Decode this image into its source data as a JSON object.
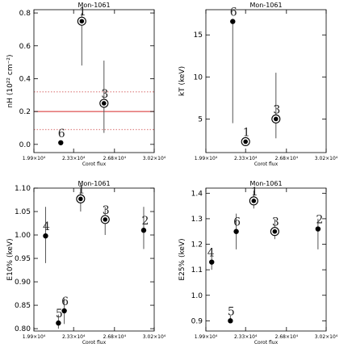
{
  "colors": {
    "ref_line": "#d62728",
    "ref_band": "#e08a8a",
    "ink": "#000000"
  },
  "chart_data": [
    {
      "type": "scatter",
      "title": "Mon-1061",
      "xlabel": "Corot flux",
      "ylabel": "nH (10²² cm⁻²)",
      "xlim": [
        19900,
        30200
      ],
      "ylim": [
        -0.05,
        0.82
      ],
      "xticks": [
        {
          "v": 19900,
          "label": "1.99×10⁴"
        },
        {
          "v": 23300,
          "label": "2.33×10⁴"
        },
        {
          "v": 26800,
          "label": "2.68×10⁴"
        },
        {
          "v": 30200,
          "label": "3.02×10⁴"
        }
      ],
      "yticks": [
        {
          "v": 0.0,
          "label": "0.0"
        },
        {
          "v": 0.2,
          "label": "0.2"
        },
        {
          "v": 0.4,
          "label": "0.4"
        },
        {
          "v": 0.6,
          "label": "0.6"
        },
        {
          "v": 0.8,
          "label": "0.8"
        }
      ],
      "reference": {
        "value": 0.2,
        "band": [
          0.09,
          0.32
        ]
      },
      "points": [
        {
          "label": "1",
          "x": 24000,
          "y": 0.75,
          "err": [
            0.48,
            0.8
          ],
          "style": "ring"
        },
        {
          "label": "3",
          "x": 25900,
          "y": 0.25,
          "err": [
            0.07,
            0.51
          ],
          "style": "ring"
        },
        {
          "label": "6",
          "x": 22200,
          "y": 0.01,
          "err": null,
          "style": "dot"
        }
      ]
    },
    {
      "type": "scatter",
      "title": "Mon-1061",
      "xlabel": "Corot flux",
      "ylabel": "kT (keV)",
      "xlim": [
        19900,
        30200
      ],
      "ylim": [
        1.0,
        18.0
      ],
      "xticks": [
        {
          "v": 19900,
          "label": "1.99×10⁴"
        },
        {
          "v": 23300,
          "label": "2.33×10⁴"
        },
        {
          "v": 26800,
          "label": "2.68×10⁴"
        },
        {
          "v": 30200,
          "label": "3.02×10⁴"
        }
      ],
      "yticks": [
        {
          "v": 5,
          "label": "5"
        },
        {
          "v": 10,
          "label": "10"
        },
        {
          "v": 15,
          "label": "15"
        }
      ],
      "reference": null,
      "points": [
        {
          "label": "6",
          "x": 22200,
          "y": 16.6,
          "err": [
            4.5,
            16.6
          ],
          "style": "dot"
        },
        {
          "label": "1",
          "x": 23300,
          "y": 2.3,
          "err": null,
          "style": "ring"
        },
        {
          "label": "3",
          "x": 25900,
          "y": 5.0,
          "err": [
            2.7,
            10.5
          ],
          "style": "ring"
        }
      ]
    },
    {
      "type": "scatter",
      "title": "Mon-1061",
      "xlabel": "Corot flux",
      "ylabel": "E10% (keV)",
      "xlim": [
        19900,
        30200
      ],
      "ylim": [
        0.795,
        1.1
      ],
      "xticks": [
        {
          "v": 19900,
          "label": "1.99×10⁴"
        },
        {
          "v": 23300,
          "label": "2.33×10⁴"
        },
        {
          "v": 26800,
          "label": "2.68×10⁴"
        },
        {
          "v": 30200,
          "label": "3.02×10⁴"
        }
      ],
      "yticks": [
        {
          "v": 0.8,
          "label": "0.80"
        },
        {
          "v": 0.85,
          "label": "0.85"
        },
        {
          "v": 0.9,
          "label": "0.90"
        },
        {
          "v": 0.95,
          "label": "0.95"
        },
        {
          "v": 1.0,
          "label": "1.00"
        },
        {
          "v": 1.05,
          "label": "1.05"
        },
        {
          "v": 1.1,
          "label": "1.10"
        }
      ],
      "reference": null,
      "points": [
        {
          "label": "4",
          "x": 20900,
          "y": 0.998,
          "err": [
            0.94,
            1.06
          ],
          "style": "dot"
        },
        {
          "label": "5",
          "x": 22000,
          "y": 0.812,
          "err": [
            0.8,
            0.83
          ],
          "style": "dot"
        },
        {
          "label": "6",
          "x": 22500,
          "y": 0.838,
          "err": [
            0.81,
            0.865
          ],
          "style": "dot"
        },
        {
          "label": "1",
          "x": 23900,
          "y": 1.077,
          "err": [
            1.05,
            1.1
          ],
          "style": "ring"
        },
        {
          "label": "3",
          "x": 26000,
          "y": 1.033,
          "err": [
            1.0,
            1.06
          ],
          "style": "ring"
        },
        {
          "label": "2",
          "x": 29300,
          "y": 1.01,
          "err": [
            0.97,
            1.06
          ],
          "style": "dot"
        }
      ]
    },
    {
      "type": "scatter",
      "title": "Mon-1061",
      "xlabel": "Corot flux",
      "ylabel": "E25% (keV)",
      "xlim": [
        19900,
        30200
      ],
      "ylim": [
        0.86,
        1.42
      ],
      "xticks": [
        {
          "v": 19900,
          "label": "1.99×10⁴"
        },
        {
          "v": 23300,
          "label": "2.33×10⁴"
        },
        {
          "v": 26800,
          "label": "2.68×10⁴"
        },
        {
          "v": 30200,
          "label": "3.02×10⁴"
        }
      ],
      "yticks": [
        {
          "v": 0.9,
          "label": "0.9"
        },
        {
          "v": 1.0,
          "label": "1.0"
        },
        {
          "v": 1.1,
          "label": "1.1"
        },
        {
          "v": 1.2,
          "label": "1.2"
        },
        {
          "v": 1.3,
          "label": "1.3"
        },
        {
          "v": 1.4,
          "label": "1.4"
        }
      ],
      "reference": null,
      "points": [
        {
          "label": "4",
          "x": 20400,
          "y": 1.13,
          "err": [
            1.1,
            1.16
          ],
          "style": "dot"
        },
        {
          "label": "5",
          "x": 22000,
          "y": 0.9,
          "err": [
            0.89,
            0.92
          ],
          "style": "dot"
        },
        {
          "label": "6",
          "x": 22500,
          "y": 1.25,
          "err": [
            1.18,
            1.32
          ],
          "style": "dot"
        },
        {
          "label": "1",
          "x": 24000,
          "y": 1.37,
          "err": [
            1.34,
            1.41
          ],
          "style": "ring"
        },
        {
          "label": "3",
          "x": 25800,
          "y": 1.25,
          "err": [
            1.22,
            1.3
          ],
          "style": "ring"
        },
        {
          "label": "2",
          "x": 29500,
          "y": 1.26,
          "err": [
            1.18,
            1.3
          ],
          "style": "dot"
        }
      ]
    }
  ]
}
